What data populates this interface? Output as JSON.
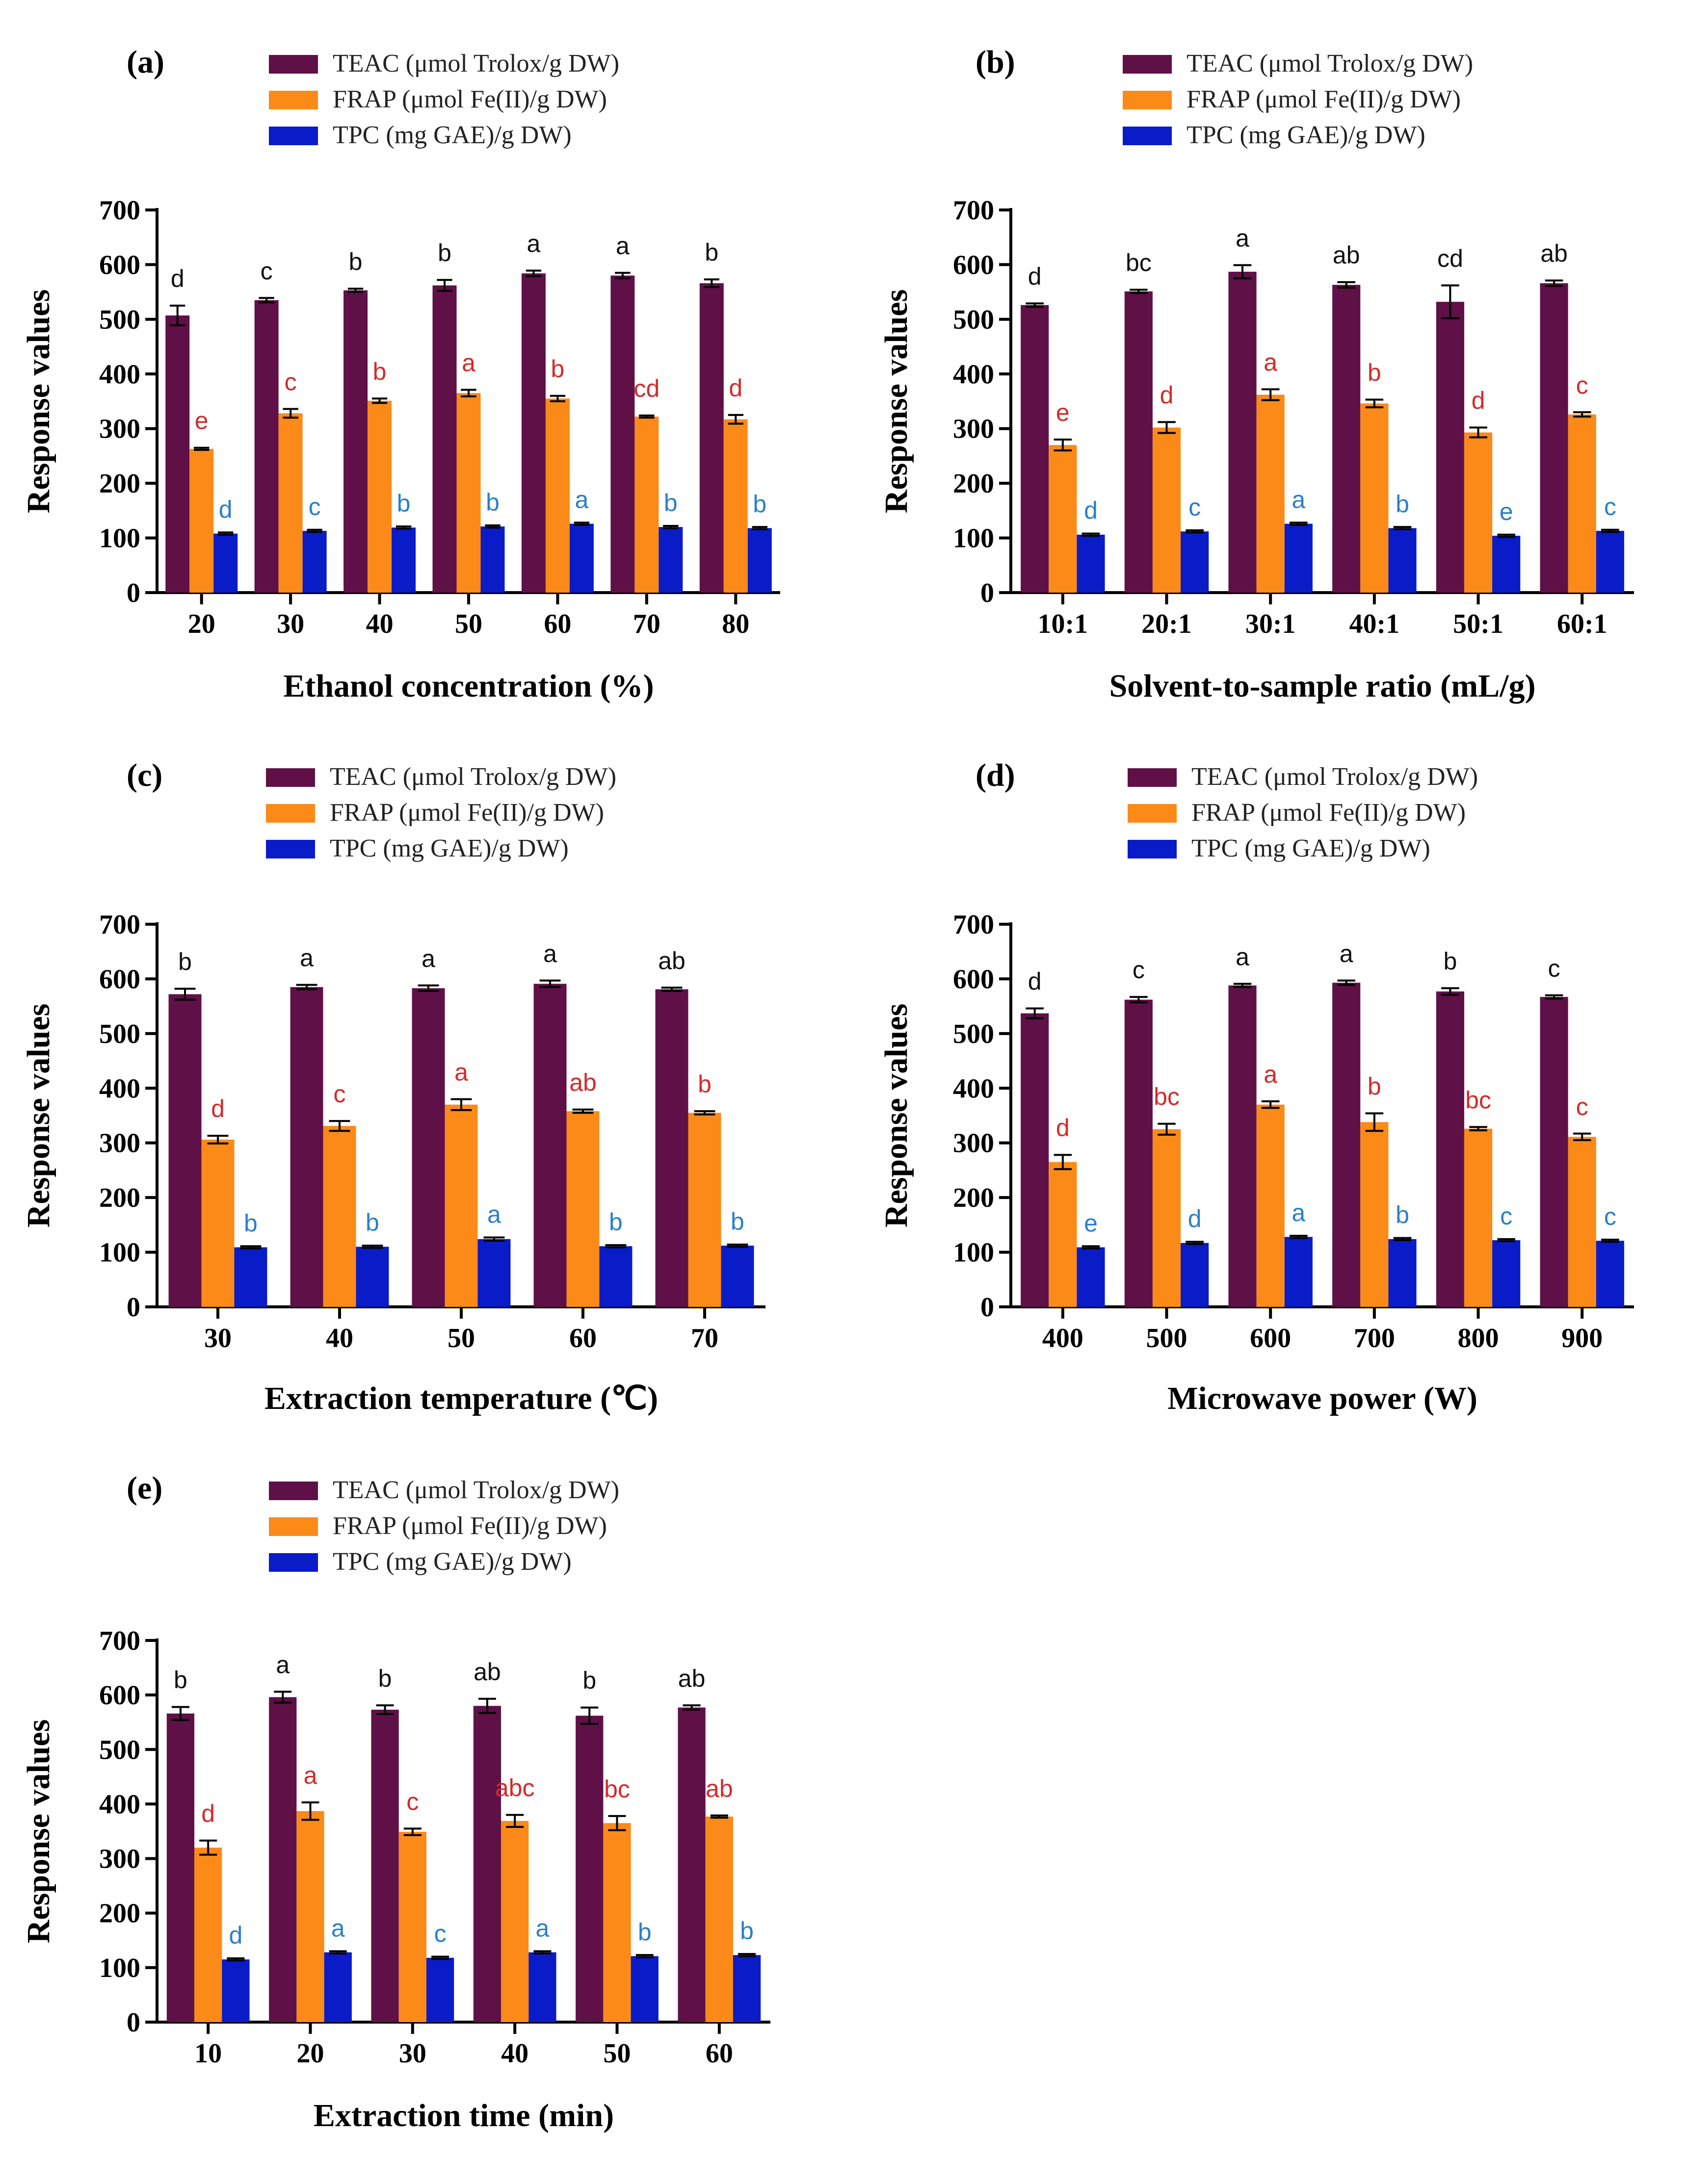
{
  "colors": {
    "teac": "#5f1047",
    "frap": "#fb8a18",
    "tpc": "#0a1bc8",
    "sig_teac": "#111111",
    "sig_frap": "#d42a2a",
    "sig_tpc": "#2a7fc8",
    "axis": "#000000"
  },
  "chart_data": [
    {
      "type": "bar",
      "panel": "(a)",
      "legend": [
        "TEAC (μmol Trolox/g DW)",
        "FRAP (μmol Fe(II)/g DW)",
        "TPC (mg GAE)/g DW)"
      ],
      "categories": [
        "20",
        "30",
        "40",
        "50",
        "60",
        "70",
        "80"
      ],
      "xlabel": "Ethanol concentration (%)",
      "ylabel": "Response values",
      "ylim": [
        0,
        700
      ],
      "yticks": [
        "0",
        "100",
        "200",
        "300",
        "400",
        "500",
        "600",
        "700"
      ],
      "series": [
        {
          "name": "TEAC (μmol Trolox/g DW)",
          "values": [
            507,
            535,
            553,
            562,
            584,
            580,
            566
          ],
          "errors": [
            18,
            4,
            3,
            10,
            5,
            5,
            7
          ],
          "labels": [
            "d",
            "c",
            "b",
            "b",
            "a",
            "a",
            "b"
          ]
        },
        {
          "name": "FRAP (μmol Fe(II)/g DW)",
          "values": [
            263,
            328,
            351,
            365,
            355,
            322,
            317
          ],
          "errors": [
            2,
            8,
            4,
            6,
            5,
            2,
            8
          ],
          "labels": [
            "e",
            "c",
            "b",
            "a",
            "b",
            "cd",
            "d"
          ]
        },
        {
          "name": "TPC (mg GAE)/g DW)",
          "values": [
            108,
            113,
            119,
            121,
            126,
            120,
            118
          ],
          "errors": [
            2,
            2,
            2,
            2,
            2,
            2,
            2
          ],
          "labels": [
            "d",
            "c",
            "b",
            "b",
            "a",
            "b",
            "b"
          ]
        }
      ]
    },
    {
      "type": "bar",
      "panel": "(b)",
      "legend": [
        "TEAC (μmol Trolox/g DW)",
        "FRAP (μmol Fe(II)/g DW)",
        "TPC (mg GAE)/g DW)"
      ],
      "categories": [
        "10:1",
        "20:1",
        "30:1",
        "40:1",
        "50:1",
        "60:1"
      ],
      "xlabel": "Solvent-to-sample ratio (mL/g)",
      "ylabel": "Response values",
      "ylim": [
        0,
        700
      ],
      "yticks": [
        "0",
        "100",
        "200",
        "300",
        "400",
        "500",
        "600",
        "700"
      ],
      "series": [
        {
          "name": "TEAC (μmol Trolox/g DW)",
          "values": [
            526,
            551,
            587,
            563,
            532,
            566
          ],
          "errors": [
            3,
            3,
            12,
            5,
            30,
            5
          ],
          "labels": [
            "d",
            "bc",
            "a",
            "ab",
            "cd",
            "ab"
          ]
        },
        {
          "name": "FRAP (μmol Fe(II)/g DW)",
          "values": [
            270,
            302,
            362,
            346,
            293,
            326
          ],
          "errors": [
            10,
            10,
            10,
            7,
            9,
            4
          ],
          "labels": [
            "e",
            "d",
            "a",
            "b",
            "d",
            "c"
          ]
        },
        {
          "name": "TPC (mg GAE)/g DW)",
          "values": [
            106,
            112,
            126,
            118,
            104,
            113
          ],
          "errors": [
            2,
            2,
            2,
            2,
            2,
            2
          ],
          "labels": [
            "d",
            "c",
            "a",
            "b",
            "e",
            "c"
          ]
        }
      ]
    },
    {
      "type": "bar",
      "panel": "(c)",
      "legend": [
        "TEAC (μmol Trolox/g DW)",
        "FRAP (μmol Fe(II)/g DW)",
        "TPC (mg GAE)/g DW)"
      ],
      "categories": [
        "30",
        "40",
        "50",
        "60",
        "70"
      ],
      "xlabel": "Extraction temperature (℃)",
      "ylabel": "Response values",
      "ylim": [
        0,
        700
      ],
      "yticks": [
        "0",
        "100",
        "200",
        "300",
        "400",
        "500",
        "600",
        "700"
      ],
      "series": [
        {
          "name": "TEAC (μmol Trolox/g DW)",
          "values": [
            572,
            585,
            583,
            591,
            581
          ],
          "errors": [
            10,
            4,
            5,
            6,
            3
          ],
          "labels": [
            "b",
            "a",
            "a",
            "a",
            "ab"
          ]
        },
        {
          "name": "FRAP (μmol Fe(II)/g DW)",
          "values": [
            306,
            331,
            370,
            358,
            355
          ],
          "errors": [
            7,
            9,
            10,
            3,
            3
          ],
          "labels": [
            "d",
            "c",
            "a",
            "ab",
            "b"
          ]
        },
        {
          "name": "TPC (mg GAE)/g DW)",
          "values": [
            109,
            110,
            124,
            111,
            112
          ],
          "errors": [
            2,
            2,
            3,
            2,
            2
          ],
          "labels": [
            "b",
            "b",
            "a",
            "b",
            "b"
          ]
        }
      ]
    },
    {
      "type": "bar",
      "panel": "(d)",
      "legend": [
        "TEAC (μmol Trolox/g DW)",
        "FRAP (μmol Fe(II)/g DW)",
        "TPC (mg GAE)/g DW)"
      ],
      "categories": [
        "400",
        "500",
        "600",
        "700",
        "800",
        "900"
      ],
      "xlabel": "Microwave power (W)",
      "ylabel": "Response values",
      "ylim": [
        0,
        700
      ],
      "yticks": [
        "0",
        "100",
        "200",
        "300",
        "400",
        "500",
        "600",
        "700"
      ],
      "series": [
        {
          "name": "TEAC (μmol Trolox/g DW)",
          "values": [
            537,
            562,
            588,
            593,
            577,
            567
          ],
          "errors": [
            9,
            5,
            3,
            4,
            6,
            3
          ],
          "labels": [
            "d",
            "c",
            "a",
            "a",
            "b",
            "c"
          ]
        },
        {
          "name": "FRAP (μmol Fe(II)/g DW)",
          "values": [
            265,
            325,
            370,
            338,
            326,
            311
          ],
          "errors": [
            13,
            10,
            6,
            16,
            3,
            6
          ],
          "labels": [
            "d",
            "bc",
            "a",
            "b",
            "bc",
            "c"
          ]
        },
        {
          "name": "TPC (mg GAE)/g DW)",
          "values": [
            109,
            117,
            128,
            124,
            122,
            121
          ],
          "errors": [
            2,
            2,
            2,
            2,
            2,
            2
          ],
          "labels": [
            "e",
            "d",
            "a",
            "b",
            "c",
            "c"
          ]
        }
      ]
    },
    {
      "type": "bar",
      "panel": "(e)",
      "legend": [
        "TEAC (μmol Trolox/g DW)",
        "FRAP (μmol Fe(II)/g DW)",
        "TPC (mg GAE)/g DW)"
      ],
      "categories": [
        "10",
        "20",
        "30",
        "40",
        "50",
        "60"
      ],
      "xlabel": "Extraction time (min)",
      "ylabel": "Response values",
      "ylim": [
        0,
        700
      ],
      "yticks": [
        "0",
        "100",
        "200",
        "300",
        "400",
        "500",
        "600",
        "700"
      ],
      "series": [
        {
          "name": "TEAC (μmol Trolox/g DW)",
          "values": [
            566,
            596,
            573,
            580,
            562,
            577
          ],
          "errors": [
            12,
            10,
            8,
            13,
            15,
            4
          ],
          "labels": [
            "b",
            "a",
            "b",
            "ab",
            "b",
            "ab"
          ]
        },
        {
          "name": "FRAP (μmol Fe(II)/g DW)",
          "values": [
            320,
            387,
            349,
            369,
            365,
            377
          ],
          "errors": [
            13,
            16,
            6,
            11,
            13,
            2
          ],
          "labels": [
            "d",
            "a",
            "c",
            "abc",
            "bc",
            "ab"
          ]
        },
        {
          "name": "TPC (mg GAE)/g DW)",
          "values": [
            115,
            128,
            118,
            128,
            121,
            123
          ],
          "errors": [
            2,
            2,
            2,
            2,
            2,
            2
          ],
          "labels": [
            "d",
            "a",
            "c",
            "a",
            "b",
            "b"
          ]
        }
      ]
    }
  ]
}
